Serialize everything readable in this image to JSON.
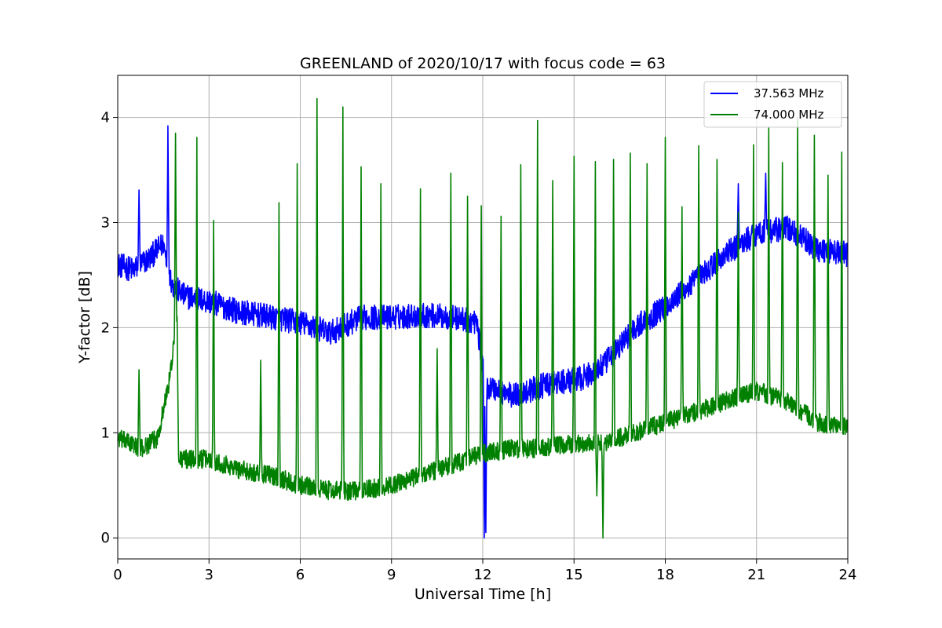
{
  "chart_data": {
    "type": "line",
    "title": "GREENLAND of 2020/10/17 with focus code = 63",
    "xlabel": "Universal Time [h]",
    "ylabel": "Y-factor [dB]",
    "xlim": [
      0,
      24
    ],
    "ylim": [
      -0.2,
      4.4
    ],
    "xticks": [
      0,
      3,
      6,
      9,
      12,
      15,
      18,
      21,
      24
    ],
    "yticks": [
      0,
      1,
      2,
      3,
      4
    ],
    "xtick_labels": [
      "0",
      "3",
      "6",
      "9",
      "12",
      "15",
      "18",
      "21",
      "24"
    ],
    "ytick_labels": [
      "0",
      "1",
      "2",
      "3",
      "4"
    ],
    "grid": true,
    "legend_position": "top-right",
    "series": [
      {
        "name": "37.563 MHz",
        "color": "#0000ff",
        "noise": 0.12,
        "baseline": [
          [
            0,
            2.6
          ],
          [
            0.5,
            2.55
          ],
          [
            1.0,
            2.65
          ],
          [
            1.5,
            2.8
          ],
          [
            1.8,
            2.4
          ],
          [
            2.2,
            2.3
          ],
          [
            3.0,
            2.25
          ],
          [
            4.0,
            2.15
          ],
          [
            5.0,
            2.1
          ],
          [
            6.0,
            2.05
          ],
          [
            7.0,
            1.95
          ],
          [
            8.0,
            2.1
          ],
          [
            9.0,
            2.1
          ],
          [
            10.0,
            2.12
          ],
          [
            11.0,
            2.1
          ],
          [
            11.8,
            2.05
          ],
          [
            12.1,
            1.45
          ],
          [
            13.0,
            1.35
          ],
          [
            14.0,
            1.45
          ],
          [
            15.0,
            1.5
          ],
          [
            15.5,
            1.55
          ],
          [
            16.0,
            1.65
          ],
          [
            17.0,
            2.0
          ],
          [
            18.0,
            2.2
          ],
          [
            19.0,
            2.45
          ],
          [
            20.0,
            2.7
          ],
          [
            21.0,
            2.9
          ],
          [
            22.0,
            2.95
          ],
          [
            23.0,
            2.75
          ],
          [
            24.0,
            2.7
          ]
        ],
        "spikes": [
          [
            0.7,
            3.31
          ],
          [
            1.65,
            3.92
          ],
          [
            12.05,
            0.0
          ],
          [
            12.1,
            0.05
          ],
          [
            20.4,
            3.37
          ],
          [
            21.3,
            3.47
          ]
        ]
      },
      {
        "name": "74.000 MHz",
        "color": "#008000",
        "noise": 0.09,
        "baseline": [
          [
            0,
            0.95
          ],
          [
            0.8,
            0.85
          ],
          [
            1.3,
            0.95
          ],
          [
            1.7,
            1.5
          ],
          [
            1.95,
            2.1
          ],
          [
            2.0,
            0.75
          ],
          [
            3.0,
            0.75
          ],
          [
            4.0,
            0.65
          ],
          [
            5.0,
            0.6
          ],
          [
            6.0,
            0.5
          ],
          [
            7.0,
            0.45
          ],
          [
            8.0,
            0.45
          ],
          [
            9.0,
            0.5
          ],
          [
            10.0,
            0.6
          ],
          [
            11.0,
            0.7
          ],
          [
            12.0,
            0.8
          ],
          [
            13.0,
            0.85
          ],
          [
            14.0,
            0.85
          ],
          [
            15.0,
            0.9
          ],
          [
            16.0,
            0.9
          ],
          [
            17.0,
            1.0
          ],
          [
            18.0,
            1.1
          ],
          [
            19.0,
            1.2
          ],
          [
            20.0,
            1.3
          ],
          [
            21.0,
            1.4
          ],
          [
            22.0,
            1.3
          ],
          [
            23.0,
            1.1
          ],
          [
            24.0,
            1.05
          ]
        ],
        "spikes": [
          [
            0.7,
            1.6
          ],
          [
            1.9,
            3.85
          ],
          [
            2.6,
            3.81
          ],
          [
            3.15,
            3.02
          ],
          [
            4.7,
            1.69
          ],
          [
            5.3,
            3.19
          ],
          [
            5.9,
            3.56
          ],
          [
            6.55,
            4.18
          ],
          [
            7.4,
            4.1
          ],
          [
            8.0,
            3.53
          ],
          [
            8.65,
            3.37
          ],
          [
            9.95,
            3.32
          ],
          [
            10.5,
            1.8
          ],
          [
            10.95,
            3.47
          ],
          [
            11.5,
            3.25
          ],
          [
            11.95,
            3.16
          ],
          [
            12.6,
            3.06
          ],
          [
            13.25,
            3.55
          ],
          [
            13.8,
            3.97
          ],
          [
            14.3,
            3.4
          ],
          [
            15.0,
            3.63
          ],
          [
            15.7,
            3.58
          ],
          [
            16.3,
            3.6
          ],
          [
            16.85,
            3.66
          ],
          [
            17.4,
            3.56
          ],
          [
            18.0,
            3.81
          ],
          [
            18.55,
            3.15
          ],
          [
            19.1,
            3.73
          ],
          [
            19.7,
            3.6
          ],
          [
            20.4,
            3.1
          ],
          [
            20.9,
            3.74
          ],
          [
            21.4,
            3.9
          ],
          [
            21.85,
            3.57
          ],
          [
            22.35,
            3.99
          ],
          [
            22.9,
            3.83
          ],
          [
            23.35,
            3.45
          ],
          [
            23.8,
            3.67
          ],
          [
            15.95,
            0.0
          ],
          [
            15.75,
            0.4
          ]
        ]
      }
    ]
  }
}
